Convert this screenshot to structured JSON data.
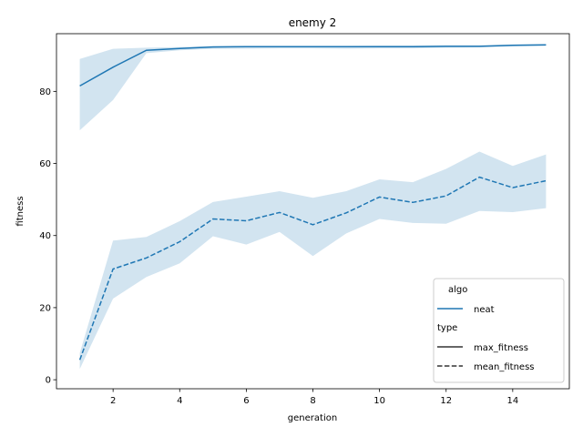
{
  "chart_data": {
    "type": "line",
    "title": "enemy 2",
    "xlabel": "generation",
    "ylabel": "fitness",
    "xlim": [
      0.3,
      15.7
    ],
    "ylim": [
      -2.5,
      96
    ],
    "xticks": [
      2,
      4,
      6,
      8,
      10,
      12,
      14
    ],
    "yticks": [
      0,
      20,
      40,
      60,
      80
    ],
    "grid": false,
    "legend_placement": "lower-right",
    "x": [
      1,
      2,
      3,
      4,
      5,
      6,
      7,
      8,
      9,
      10,
      11,
      12,
      13,
      14,
      15
    ],
    "series": [
      {
        "algo": "neat",
        "type": "max_fitness",
        "style": "solid",
        "color": "#1f77b4",
        "values": [
          81.5,
          86.7,
          91.4,
          91.9,
          92.3,
          92.4,
          92.4,
          92.4,
          92.4,
          92.4,
          92.4,
          92.5,
          92.5,
          92.8,
          92.9
        ],
        "ci_lower": [
          69.2,
          77.6,
          90.6,
          91.4,
          91.8,
          91.8,
          91.9,
          91.9,
          91.8,
          91.9,
          91.9,
          92.1,
          92.2,
          92.5,
          92.6
        ],
        "ci_upper": [
          89.0,
          91.8,
          92.1,
          92.3,
          92.6,
          92.6,
          92.6,
          92.6,
          92.6,
          92.7,
          92.7,
          92.8,
          92.8,
          93.0,
          93.1
        ]
      },
      {
        "algo": "neat",
        "type": "mean_fitness",
        "style": "dashed",
        "color": "#1f77b4",
        "values": [
          5.5,
          30.7,
          33.8,
          38.3,
          44.6,
          44.1,
          46.4,
          43.0,
          46.3,
          50.7,
          49.2,
          51.0,
          56.2,
          53.3,
          55.2
        ],
        "ci_lower": [
          3.0,
          22.5,
          28.5,
          32.3,
          39.8,
          37.5,
          41.0,
          34.3,
          40.6,
          44.6,
          43.5,
          43.3,
          46.8,
          46.5,
          47.6
        ],
        "ci_upper": [
          7.4,
          38.6,
          39.6,
          44.0,
          49.3,
          50.8,
          52.3,
          50.5,
          52.3,
          55.6,
          54.8,
          58.5,
          63.3,
          59.3,
          62.5
        ]
      }
    ],
    "legend": {
      "title1": "algo",
      "entry1": "neat",
      "title2": "type",
      "entry2": "max_fitness",
      "entry3": "mean_fitness"
    }
  }
}
